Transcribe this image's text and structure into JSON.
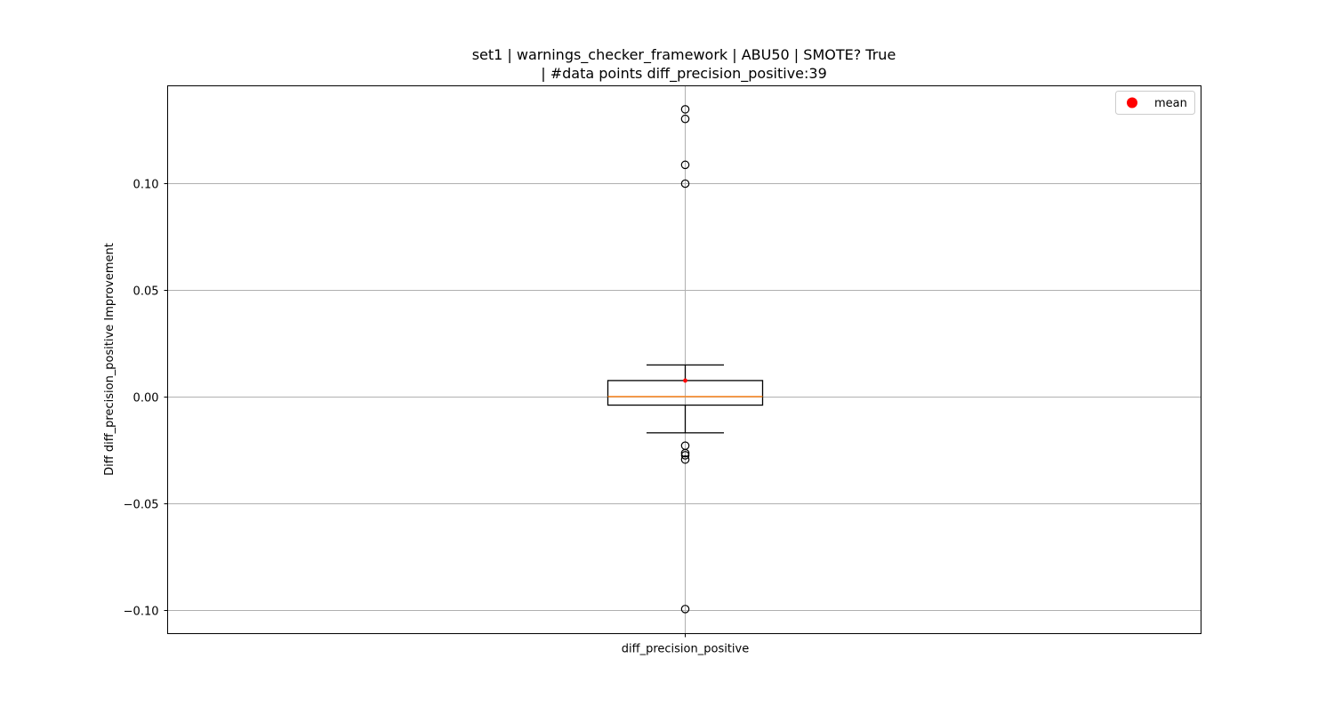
{
  "chart_data": {
    "type": "box",
    "title_line1": "set1 | warnings_checker_framework | ABU50 | SMOTE? True",
    "title_line2": "| #data points diff_precision_positive:39",
    "xlabel": "",
    "ylabel": "Diff diff_precision_positive Improvement",
    "categories": [
      "diff_precision_positive"
    ],
    "ylim": [
      -0.111,
      0.1455
    ],
    "yticks": [
      -0.1,
      -0.05,
      0.0,
      0.05,
      0.1
    ],
    "ytick_labels": [
      "−0.10",
      "−0.05",
      "0.00",
      "0.05",
      "0.10"
    ],
    "grid": true,
    "legend": {
      "position": "top-right",
      "entries": [
        {
          "label": "mean",
          "color": "#ff0000",
          "marker": "circle"
        }
      ]
    },
    "boxes": [
      {
        "name": "diff_precision_positive",
        "whisker_low": -0.017,
        "q1": -0.004,
        "median": 0.0,
        "q3": 0.0075,
        "whisker_high": 0.0148,
        "mean": 0.0075,
        "outliers": [
          0.1345,
          0.13,
          0.1085,
          0.0997,
          -0.023,
          -0.0265,
          -0.0275,
          -0.0295,
          -0.0995
        ]
      }
    ],
    "colors": {
      "median": "#ff7f0e",
      "mean": "#ff0000",
      "box": "#000000",
      "grid": "#b0b0b0"
    }
  }
}
